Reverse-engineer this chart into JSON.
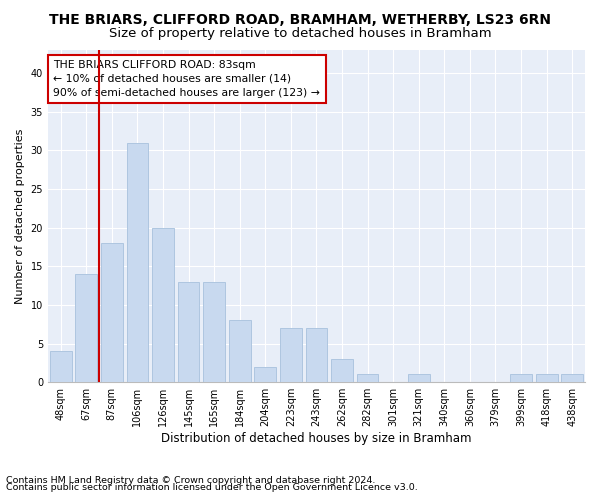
{
  "title1": "THE BRIARS, CLIFFORD ROAD, BRAMHAM, WETHERBY, LS23 6RN",
  "title2": "Size of property relative to detached houses in Bramham",
  "xlabel": "Distribution of detached houses by size in Bramham",
  "ylabel": "Number of detached properties",
  "categories": [
    "48sqm",
    "67sqm",
    "87sqm",
    "106sqm",
    "126sqm",
    "145sqm",
    "165sqm",
    "184sqm",
    "204sqm",
    "223sqm",
    "243sqm",
    "262sqm",
    "282sqm",
    "301sqm",
    "321sqm",
    "340sqm",
    "360sqm",
    "379sqm",
    "399sqm",
    "418sqm",
    "438sqm"
  ],
  "values": [
    4,
    14,
    18,
    31,
    20,
    13,
    13,
    8,
    2,
    7,
    7,
    3,
    1,
    0,
    1,
    0,
    0,
    0,
    1,
    1,
    1
  ],
  "bar_color": "#c8d9ef",
  "bar_edgecolor": "#aec6e0",
  "vline_index": 2,
  "vline_color": "#cc0000",
  "ylim": [
    0,
    43
  ],
  "yticks": [
    0,
    5,
    10,
    15,
    20,
    25,
    30,
    35,
    40
  ],
  "annotation_box_text": "THE BRIARS CLIFFORD ROAD: 83sqm\n← 10% of detached houses are smaller (14)\n90% of semi-detached houses are larger (123) →",
  "footnote1": "Contains HM Land Registry data © Crown copyright and database right 2024.",
  "footnote2": "Contains public sector information licensed under the Open Government Licence v3.0.",
  "bg_color": "#ffffff",
  "plot_bg_color": "#e8eef8",
  "title1_fontsize": 10,
  "title2_fontsize": 9.5,
  "annotation_fontsize": 7.8,
  "tick_fontsize": 7,
  "xlabel_fontsize": 8.5,
  "ylabel_fontsize": 8,
  "footnote_fontsize": 6.8
}
